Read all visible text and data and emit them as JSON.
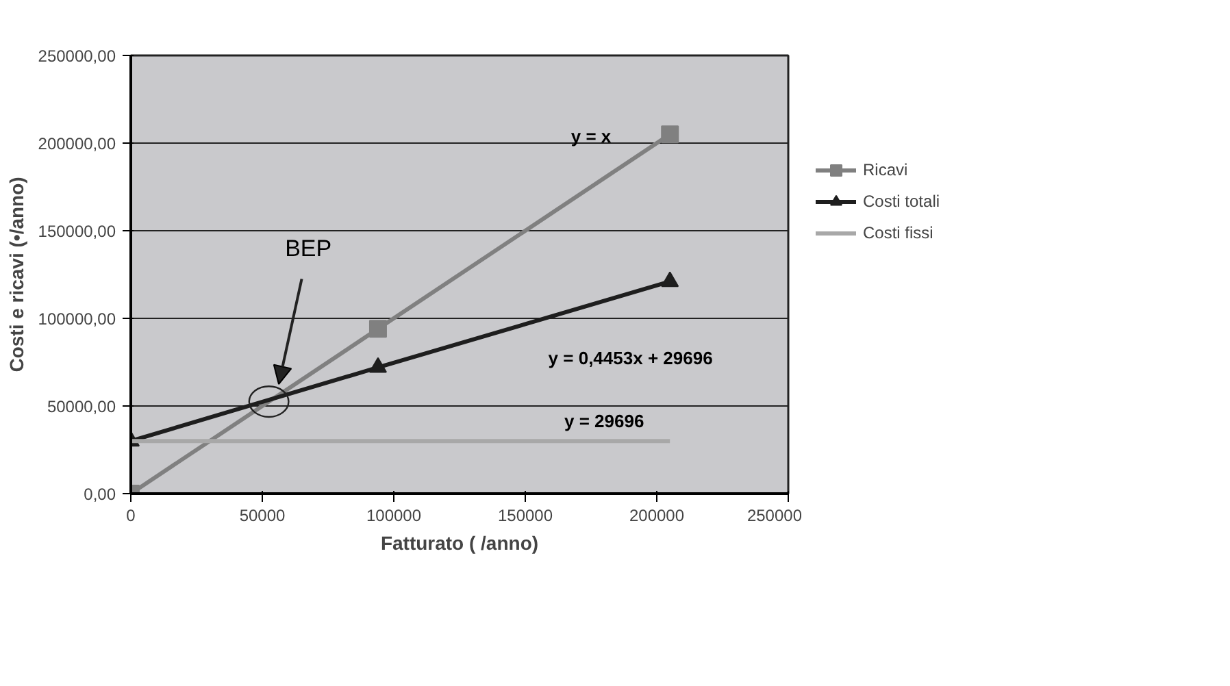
{
  "chart_data": {
    "type": "line",
    "xlabel": "Fatturato ( /anno)",
    "ylabel": "Costi e ricavi (•/anno)",
    "xlim": [
      0,
      250000
    ],
    "ylim": [
      0,
      250000
    ],
    "xticks": [
      0,
      50000,
      100000,
      150000,
      200000,
      250000
    ],
    "yticks": [
      {
        "value": 0,
        "label": "0,00"
      },
      {
        "value": 50000,
        "label": "50000,00"
      },
      {
        "value": 100000,
        "label": "100000,00"
      },
      {
        "value": 150000,
        "label": "150000,00"
      },
      {
        "value": 200000,
        "label": "200000,00"
      },
      {
        "value": 250000,
        "label": "250000,00"
      }
    ],
    "grid": "y",
    "legend": "right",
    "series": [
      {
        "name": "Ricavi",
        "color": "#808080",
        "x": [
          0,
          94000,
          205000
        ],
        "values": [
          0,
          94000,
          205000
        ],
        "marker": "square"
      },
      {
        "name": "Costi totali",
        "color": "#1e1e1e",
        "x": [
          0,
          94000,
          205000
        ],
        "values": [
          30000,
          72000,
          121000
        ],
        "marker": "triangle"
      },
      {
        "name": "Costi fissi",
        "color": "#a8a8a8",
        "x": [
          0,
          94000,
          205000
        ],
        "values": [
          30000,
          30000,
          30000
        ],
        "marker": "none"
      }
    ],
    "annotations": [
      "BEP",
      "y = x",
      "y = 0,4453x + 29696",
      "y = 29696"
    ]
  }
}
